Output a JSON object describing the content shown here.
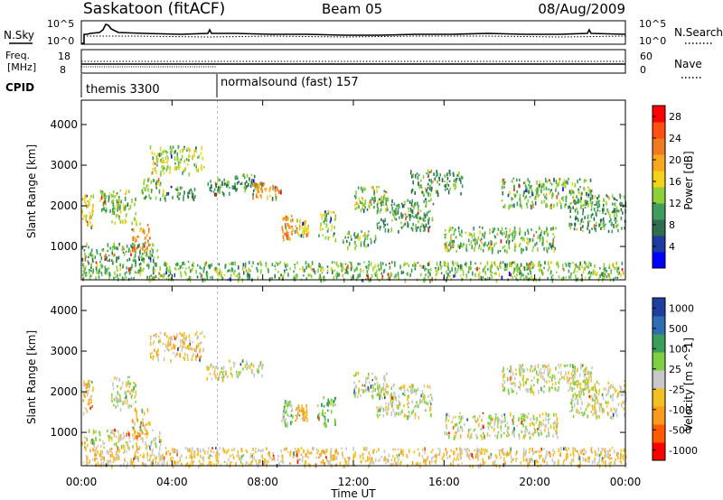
{
  "header": {
    "station": "Saskatoon (fitACF)",
    "beam": "Beam 05",
    "date": "08/Aug/2009"
  },
  "noise_panel": {
    "left_label": "N.Sky",
    "right_label": "N.Search",
    "left_ticks": [
      "10^5",
      "10^0"
    ],
    "right_ticks": [
      "10^5",
      "10^0"
    ]
  },
  "freq_panel": {
    "left_label_1": "Freq.",
    "left_label_2": "[MHz]",
    "right_label": "Nave",
    "left_ticks": [
      "18",
      "8"
    ],
    "right_ticks": [
      "60",
      "0"
    ]
  },
  "cpid_panel": {
    "label": "CPID",
    "modes": [
      {
        "name": "themis 3300",
        "start_hour": 0
      },
      {
        "name": "normalsound (fast) 157",
        "start_hour": 6
      }
    ]
  },
  "x_axis": {
    "title": "Time UT",
    "ticks": [
      "00:00",
      "04:00",
      "08:00",
      "12:00",
      "16:00",
      "20:00",
      "00:00"
    ],
    "range_hours": [
      0,
      24
    ]
  },
  "chart_data": [
    {
      "type": "heatmap",
      "title": "",
      "xlabel": "",
      "ylabel": "Slant Range [km]",
      "xlim_hours": [
        0,
        24
      ],
      "ylim": [
        180,
        4600
      ],
      "y_ticks": [
        "1000",
        "2000",
        "3000",
        "4000"
      ],
      "colorbar": {
        "title": "Power [dB]",
        "ticks": [
          "4",
          "8",
          "12",
          "16",
          "20",
          "24",
          "28"
        ],
        "range": [
          0,
          30
        ],
        "colors": [
          "#0000ff",
          "#1e3ca0",
          "#2f6d4f",
          "#3f9e5e",
          "#8fd03a",
          "#f2d21a",
          "#f7a820",
          "#f07a20",
          "#ff5010",
          "#ff0000"
        ]
      },
      "regions": [
        {
          "t0": 0,
          "t1": 24,
          "r0": 200,
          "r1": 650,
          "v": 12
        },
        {
          "t0": 0,
          "t1": 3.5,
          "r0": 650,
          "r1": 1100,
          "v": 10
        },
        {
          "t0": 0,
          "t1": 0.5,
          "r0": 1500,
          "r1": 2300,
          "v": 16
        },
        {
          "t0": 0.8,
          "t1": 1.4,
          "r0": 1900,
          "r1": 2400,
          "v": 12
        },
        {
          "t0": 1.3,
          "t1": 2.4,
          "r0": 1600,
          "r1": 2400,
          "v": 14
        },
        {
          "t0": 2.2,
          "t1": 3.0,
          "r0": 900,
          "r1": 1600,
          "v": 22
        },
        {
          "t0": 2.6,
          "t1": 3.6,
          "r0": 2200,
          "r1": 2700,
          "v": 12
        },
        {
          "t0": 3.0,
          "t1": 5.4,
          "r0": 2800,
          "r1": 3500,
          "v": 14
        },
        {
          "t0": 3.6,
          "t1": 5.0,
          "r0": 2200,
          "r1": 2500,
          "v": 10
        },
        {
          "t0": 5.5,
          "t1": 6.5,
          "r0": 2300,
          "r1": 2700,
          "v": 10
        },
        {
          "t0": 6.5,
          "t1": 8.0,
          "r0": 2400,
          "r1": 2800,
          "v": 10
        },
        {
          "t0": 7.5,
          "t1": 8.8,
          "r0": 2200,
          "r1": 2600,
          "v": 20
        },
        {
          "t0": 8.8,
          "t1": 9.3,
          "r0": 1200,
          "r1": 1800,
          "v": 22
        },
        {
          "t0": 9.4,
          "t1": 10.0,
          "r0": 1300,
          "r1": 1700,
          "v": 16
        },
        {
          "t0": 10.4,
          "t1": 11.2,
          "r0": 1200,
          "r1": 1900,
          "v": 14
        },
        {
          "t0": 11.5,
          "t1": 13.0,
          "r0": 1000,
          "r1": 1400,
          "v": 12
        },
        {
          "t0": 12.0,
          "t1": 13.5,
          "r0": 1900,
          "r1": 2500,
          "v": 12
        },
        {
          "t0": 13.0,
          "t1": 15.5,
          "r0": 1400,
          "r1": 2200,
          "v": 10
        },
        {
          "t0": 14.5,
          "t1": 16.8,
          "r0": 2300,
          "r1": 2900,
          "v": 10
        },
        {
          "t0": 16.0,
          "t1": 21.0,
          "r0": 900,
          "r1": 1500,
          "v": 12
        },
        {
          "t0": 18.5,
          "t1": 22.5,
          "r0": 2000,
          "r1": 2700,
          "v": 12
        },
        {
          "t0": 21.5,
          "t1": 24.0,
          "r0": 1400,
          "r1": 2300,
          "v": 10
        }
      ]
    },
    {
      "type": "heatmap",
      "title": "",
      "xlabel": "Time UT",
      "ylabel": "Slant Range [km]",
      "xlim_hours": [
        0,
        24
      ],
      "ylim": [
        180,
        4600
      ],
      "y_ticks": [
        "1000",
        "2000",
        "3000",
        "4000"
      ],
      "colorbar": {
        "title": "Velocity [m s^-1]",
        "ticks": [
          "1000",
          "500",
          "100",
          "25",
          "-25",
          "-100",
          "-500",
          "-1000"
        ],
        "range": [
          -1000,
          1000
        ],
        "colors": [
          "#ff0000",
          "#ff5a00",
          "#f79a1e",
          "#f2c020",
          "#c8c8c8",
          "#7fd040",
          "#3a9e5a",
          "#2d6fb0",
          "#1f3fa0"
        ]
      },
      "regions": [
        {
          "t0": 0,
          "t1": 24,
          "r0": 200,
          "r1": 650,
          "v": -150
        },
        {
          "t0": 0,
          "t1": 3.5,
          "r0": 650,
          "r1": 1100,
          "v": 10
        },
        {
          "t0": 0,
          "t1": 0.5,
          "r0": 1500,
          "r1": 2300,
          "v": -200
        },
        {
          "t0": 1.3,
          "t1": 2.4,
          "r0": 1600,
          "r1": 2400,
          "v": 10
        },
        {
          "t0": 2.2,
          "t1": 3.0,
          "r0": 900,
          "r1": 1600,
          "v": -300
        },
        {
          "t0": 3.0,
          "t1": 5.4,
          "r0": 2800,
          "r1": 3500,
          "v": -200
        },
        {
          "t0": 5.5,
          "t1": 6.5,
          "r0": 2300,
          "r1": 2700,
          "v": 10
        },
        {
          "t0": 6.5,
          "t1": 8.0,
          "r0": 2400,
          "r1": 2800,
          "v": 10
        },
        {
          "t0": 8.8,
          "t1": 9.3,
          "r0": 1200,
          "r1": 1800,
          "v": 200
        },
        {
          "t0": 9.4,
          "t1": 10.0,
          "r0": 1300,
          "r1": 1700,
          "v": -250
        },
        {
          "t0": 10.4,
          "t1": 11.2,
          "r0": 1200,
          "r1": 1900,
          "v": 300
        },
        {
          "t0": 12.0,
          "t1": 13.5,
          "r0": 1900,
          "r1": 2500,
          "v": 10
        },
        {
          "t0": 13.0,
          "t1": 15.5,
          "r0": 1400,
          "r1": 2200,
          "v": 10
        },
        {
          "t0": 16.0,
          "t1": 21.0,
          "r0": 900,
          "r1": 1500,
          "v": 10
        },
        {
          "t0": 18.5,
          "t1": 22.5,
          "r0": 2000,
          "r1": 2700,
          "v": 10
        },
        {
          "t0": 21.5,
          "t1": 24.0,
          "r0": 1400,
          "r1": 2300,
          "v": 10
        }
      ]
    }
  ]
}
